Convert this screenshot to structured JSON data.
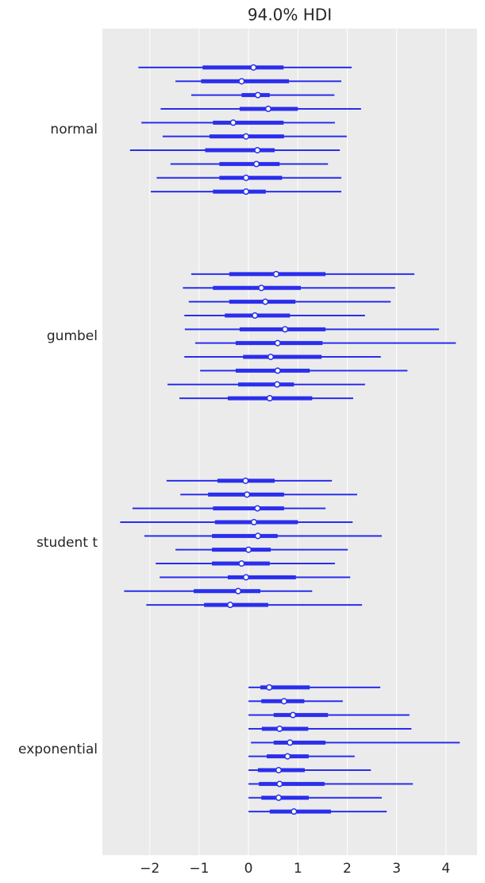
{
  "chart_data": {
    "type": "forest",
    "title": "94.0% HDI",
    "color": "#2a2eec",
    "grid": true,
    "xlim": [
      -2.96,
      4.63
    ],
    "xticks": [
      {
        "value": -2,
        "label": "−2"
      },
      {
        "value": -1,
        "label": "−1"
      },
      0,
      1,
      2,
      3,
      4
    ],
    "groups": [
      {
        "name": "normal",
        "low": [
          -2.23,
          -1.48,
          -1.16,
          -1.78,
          -2.17,
          -1.74,
          -2.4,
          -1.58,
          -1.86,
          -1.98
        ],
        "high": [
          2.09,
          1.88,
          1.74,
          2.28,
          1.75,
          1.99,
          1.85,
          1.61,
          1.88,
          1.88
        ],
        "q1": [
          -0.93,
          -0.96,
          -0.14,
          -0.18,
          -0.72,
          -0.79,
          -0.88,
          -0.59,
          -0.59,
          -0.72
        ],
        "q3": [
          0.71,
          0.82,
          0.43,
          1.0,
          0.71,
          0.72,
          0.53,
          0.63,
          0.68,
          0.35
        ],
        "median": [
          0.1,
          -0.14,
          0.19,
          0.4,
          -0.31,
          -0.05,
          0.18,
          0.16,
          -0.05,
          -0.05
        ]
      },
      {
        "name": "gumbel",
        "low": [
          -1.16,
          -1.33,
          -1.21,
          -1.3,
          -1.29,
          -1.08,
          -1.3,
          -0.98,
          -1.64,
          -1.4
        ],
        "high": [
          3.36,
          2.97,
          2.88,
          2.36,
          3.86,
          4.2,
          2.68,
          3.22,
          2.36,
          2.12
        ],
        "q1": [
          -0.39,
          -0.72,
          -0.39,
          -0.48,
          -0.18,
          -0.26,
          -0.11,
          -0.26,
          -0.21,
          -0.42
        ],
        "q3": [
          1.56,
          1.06,
          0.95,
          0.84,
          1.56,
          1.5,
          1.48,
          1.24,
          0.92,
          1.29
        ],
        "median": [
          0.56,
          0.26,
          0.34,
          0.13,
          0.74,
          0.59,
          0.45,
          0.59,
          0.58,
          0.43
        ]
      },
      {
        "name": "student t",
        "low": [
          -1.66,
          -1.38,
          -2.35,
          -2.6,
          -2.11,
          -1.48,
          -1.88,
          -1.8,
          -2.52,
          -2.07
        ],
        "high": [
          1.69,
          2.2,
          1.56,
          2.11,
          2.7,
          2.01,
          1.75,
          2.06,
          1.29,
          2.3
        ],
        "q1": [
          -0.63,
          -0.82,
          -0.72,
          -0.68,
          -0.74,
          -0.74,
          -0.74,
          -0.42,
          -1.11,
          -0.9
        ],
        "q3": [
          0.53,
          0.72,
          0.72,
          1.0,
          0.59,
          0.45,
          0.43,
          0.96,
          0.24,
          0.4
        ],
        "median": [
          -0.06,
          -0.03,
          0.18,
          0.11,
          0.19,
          0.0,
          -0.14,
          -0.05,
          -0.21,
          -0.37
        ]
      },
      {
        "name": "exponential",
        "low": [
          0.0,
          0.0,
          0.0,
          0.0,
          0.05,
          0.0,
          0.0,
          0.0,
          0.0,
          0.0
        ],
        "high": [
          2.67,
          1.91,
          3.26,
          3.3,
          4.28,
          2.15,
          2.48,
          3.33,
          2.7,
          2.8
        ],
        "q1": [
          0.24,
          0.26,
          0.51,
          0.27,
          0.51,
          0.37,
          0.19,
          0.21,
          0.26,
          0.43
        ],
        "q3": [
          1.24,
          1.13,
          1.61,
          1.21,
          1.56,
          1.22,
          1.14,
          1.54,
          1.22,
          1.67
        ],
        "median": [
          0.42,
          0.72,
          0.9,
          0.63,
          0.84,
          0.79,
          0.61,
          0.63,
          0.61,
          0.92
        ]
      }
    ]
  }
}
